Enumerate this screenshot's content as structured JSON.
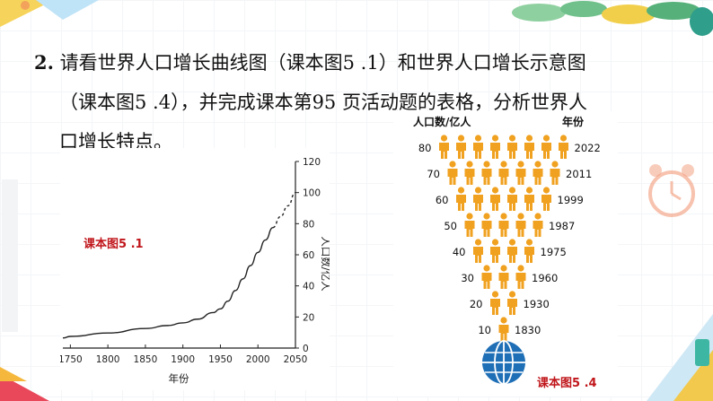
{
  "question": {
    "number": "2.",
    "line1": "请看世界人口增长曲线图（课本图5 .1）和世界人口增长示意图",
    "line2": "（课本图5 .4），并完成课本第95 页活动题的表格，分析世界人",
    "line3": "口增长特点。"
  },
  "figure_labels": {
    "fig51": "课本图5 .1",
    "fig54": "课本图5 .4"
  },
  "chart_data": {
    "type": "line",
    "xlabel": "年份",
    "ylabel": "人口数/亿人",
    "xticks": [
      "1750",
      "1800",
      "1850",
      "1900",
      "1950",
      "2000",
      "2050"
    ],
    "yticks": [
      "0",
      "20",
      "40",
      "60",
      "80",
      "100",
      "120"
    ],
    "xlim": [
      1740,
      2050
    ],
    "ylim": [
      0,
      120
    ],
    "grid": false,
    "series": [
      {
        "style": "solid",
        "x": [
          1740,
          1750,
          1800,
          1850,
          1880,
          1900,
          1920,
          1940,
          1950,
          1960,
          1970,
          1980,
          1990,
          2000,
          2010,
          2020
        ],
        "y": [
          6.5,
          7.5,
          9.7,
          12.6,
          14.5,
          16.2,
          18.6,
          22.8,
          25.2,
          30.2,
          37,
          44.5,
          53,
          61.5,
          69.5,
          77.5
        ]
      },
      {
        "style": "dashed",
        "x": [
          2020,
          2030,
          2040,
          2050
        ],
        "y": [
          77.5,
          84.5,
          91.5,
          100
        ]
      }
    ]
  },
  "pyramid": {
    "header_left": "人口数/亿人",
    "header_right": "年份",
    "rows": [
      {
        "pop": "80",
        "year": "2022",
        "count": 8
      },
      {
        "pop": "70",
        "year": "2011",
        "count": 7
      },
      {
        "pop": "60",
        "year": "1999",
        "count": 6
      },
      {
        "pop": "50",
        "year": "1987",
        "count": 5
      },
      {
        "pop": "40",
        "year": "1975",
        "count": 4
      },
      {
        "pop": "30",
        "year": "1960",
        "count": 3
      },
      {
        "pop": "20",
        "year": "1930",
        "count": 2
      },
      {
        "pop": "10",
        "year": "1830",
        "count": 1
      }
    ],
    "person_color": "#f0a11f",
    "globe_color": "#1f6fb6"
  }
}
